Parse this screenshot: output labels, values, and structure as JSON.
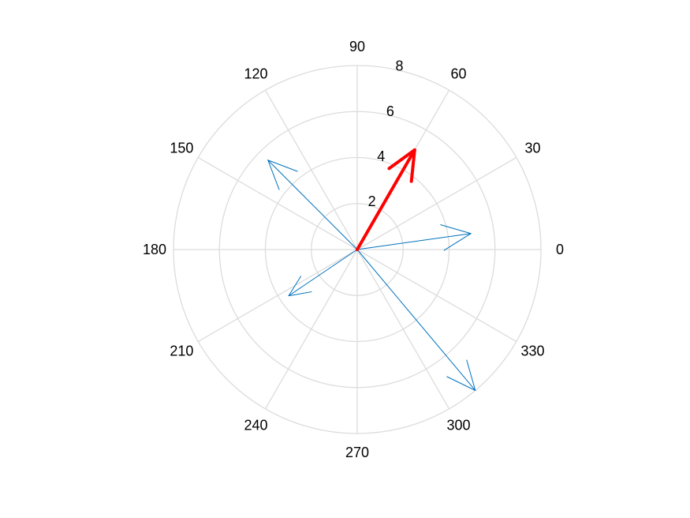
{
  "chart_data": {
    "type": "polar-compass",
    "title": "",
    "rlim": [
      0,
      8
    ],
    "r_ticks": [
      2,
      4,
      6,
      8
    ],
    "r_tick_labels": [
      "2",
      "4",
      "6",
      "8"
    ],
    "theta_ticks": [
      0,
      30,
      60,
      90,
      120,
      150,
      180,
      210,
      240,
      270,
      300,
      330
    ],
    "theta_tick_labels": [
      "0",
      "30",
      "60",
      "90",
      "120",
      "150",
      "180",
      "210",
      "240",
      "270",
      "300",
      "330"
    ],
    "grid": true,
    "series": [
      {
        "color": "#0072bd",
        "vectors": [
          {
            "angle_deg": 8,
            "magnitude": 5.0
          },
          {
            "angle_deg": 135,
            "magnitude": 5.5
          },
          {
            "angle_deg": 214,
            "magnitude": 3.6
          },
          {
            "angle_deg": 310,
            "magnitude": 8.0
          }
        ]
      },
      {
        "color": "#ff0000",
        "vectors": [
          {
            "angle_deg": 60,
            "magnitude": 5.0
          }
        ]
      }
    ]
  }
}
